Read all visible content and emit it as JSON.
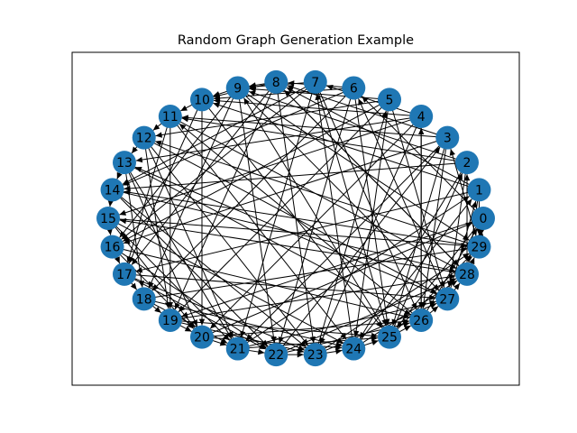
{
  "title": "Random Graph Generation Example",
  "node_color": "#1f77b4",
  "edge_color": "#000000",
  "chart_data": {
    "type": "directed-graph",
    "layout": "circular",
    "title": "Random Graph Generation Example",
    "nodes": [
      "0",
      "1",
      "2",
      "3",
      "4",
      "5",
      "6",
      "7",
      "8",
      "9",
      "10",
      "11",
      "12",
      "13",
      "14",
      "15",
      "16",
      "17",
      "18",
      "19",
      "20",
      "21",
      "22",
      "23",
      "24",
      "25",
      "26",
      "27",
      "28",
      "29"
    ],
    "edges": [
      [
        0,
        29
      ],
      [
        0,
        25
      ],
      [
        0,
        19
      ],
      [
        1,
        29
      ],
      [
        1,
        28
      ],
      [
        1,
        17
      ],
      [
        1,
        10
      ],
      [
        2,
        27
      ],
      [
        2,
        24
      ],
      [
        2,
        14
      ],
      [
        3,
        26
      ],
      [
        3,
        25
      ],
      [
        3,
        11
      ],
      [
        3,
        21
      ],
      [
        4,
        26
      ],
      [
        4,
        20
      ],
      [
        4,
        13
      ],
      [
        4,
        23
      ],
      [
        4,
        10
      ],
      [
        5,
        24
      ],
      [
        5,
        16
      ],
      [
        5,
        19
      ],
      [
        5,
        27
      ],
      [
        6,
        25
      ],
      [
        6,
        18
      ],
      [
        6,
        22
      ],
      [
        6,
        10
      ],
      [
        7,
        25
      ],
      [
        7,
        21
      ],
      [
        7,
        14
      ],
      [
        7,
        26
      ],
      [
        8,
        23
      ],
      [
        8,
        17
      ],
      [
        8,
        28
      ],
      [
        8,
        10
      ],
      [
        9,
        22
      ],
      [
        9,
        16
      ],
      [
        9,
        27
      ],
      [
        9,
        29
      ],
      [
        10,
        20
      ],
      [
        10,
        25
      ],
      [
        11,
        24
      ],
      [
        11,
        17
      ],
      [
        11,
        28
      ],
      [
        12,
        23
      ],
      [
        12,
        19
      ],
      [
        12,
        27
      ],
      [
        13,
        21
      ],
      [
        13,
        26
      ],
      [
        13,
        18
      ],
      [
        14,
        23
      ],
      [
        14,
        28
      ],
      [
        15,
        24
      ],
      [
        15,
        20
      ],
      [
        15,
        29
      ],
      [
        16,
        22
      ],
      [
        16,
        26
      ],
      [
        17,
        23
      ],
      [
        17,
        27
      ],
      [
        18,
        24
      ],
      [
        18,
        29
      ],
      [
        19,
        25
      ],
      [
        19,
        28
      ],
      [
        20,
        26
      ],
      [
        20,
        0
      ],
      [
        21,
        27
      ],
      [
        21,
        1
      ],
      [
        22,
        28
      ],
      [
        22,
        3
      ],
      [
        23,
        29
      ],
      [
        23,
        5
      ],
      [
        24,
        1
      ],
      [
        24,
        7
      ],
      [
        25,
        2
      ],
      [
        25,
        9
      ],
      [
        26,
        4
      ],
      [
        26,
        11
      ],
      [
        27,
        6
      ],
      [
        27,
        13
      ],
      [
        28,
        8
      ],
      [
        28,
        15
      ],
      [
        29,
        3
      ],
      [
        29,
        12
      ],
      [
        2,
        11
      ],
      [
        3,
        16
      ],
      [
        4,
        15
      ],
      [
        5,
        12
      ],
      [
        6,
        14
      ],
      [
        7,
        16
      ],
      [
        8,
        19
      ],
      [
        9,
        18
      ],
      [
        10,
        17
      ],
      [
        11,
        19
      ],
      [
        12,
        21
      ],
      [
        13,
        20
      ],
      [
        14,
        22
      ],
      [
        15,
        21
      ],
      [
        16,
        20
      ],
      [
        17,
        22
      ],
      [
        18,
        21
      ],
      [
        19,
        23
      ],
      [
        20,
        24
      ],
      [
        21,
        25
      ],
      [
        22,
        26
      ],
      [
        23,
        27
      ],
      [
        24,
        28
      ],
      [
        25,
        29
      ],
      [
        26,
        0
      ],
      [
        27,
        1
      ],
      [
        28,
        2
      ],
      [
        29,
        14
      ],
      [
        0,
        6
      ],
      [
        1,
        8
      ],
      [
        2,
        9
      ],
      [
        3,
        8
      ],
      [
        4,
        7
      ],
      [
        5,
        9
      ],
      [
        6,
        8
      ],
      [
        7,
        9
      ],
      [
        8,
        9
      ],
      [
        9,
        10
      ],
      [
        10,
        11
      ],
      [
        11,
        12
      ],
      [
        12,
        13
      ],
      [
        13,
        14
      ],
      [
        14,
        15
      ],
      [
        15,
        16
      ],
      [
        16,
        17
      ],
      [
        17,
        18
      ],
      [
        18,
        19
      ],
      [
        19,
        20
      ],
      [
        20,
        21
      ],
      [
        21,
        22
      ],
      [
        22,
        23
      ],
      [
        23,
        24
      ],
      [
        24,
        25
      ],
      [
        25,
        26
      ],
      [
        26,
        27
      ],
      [
        27,
        28
      ],
      [
        28,
        29
      ],
      [
        29,
        0
      ]
    ]
  }
}
